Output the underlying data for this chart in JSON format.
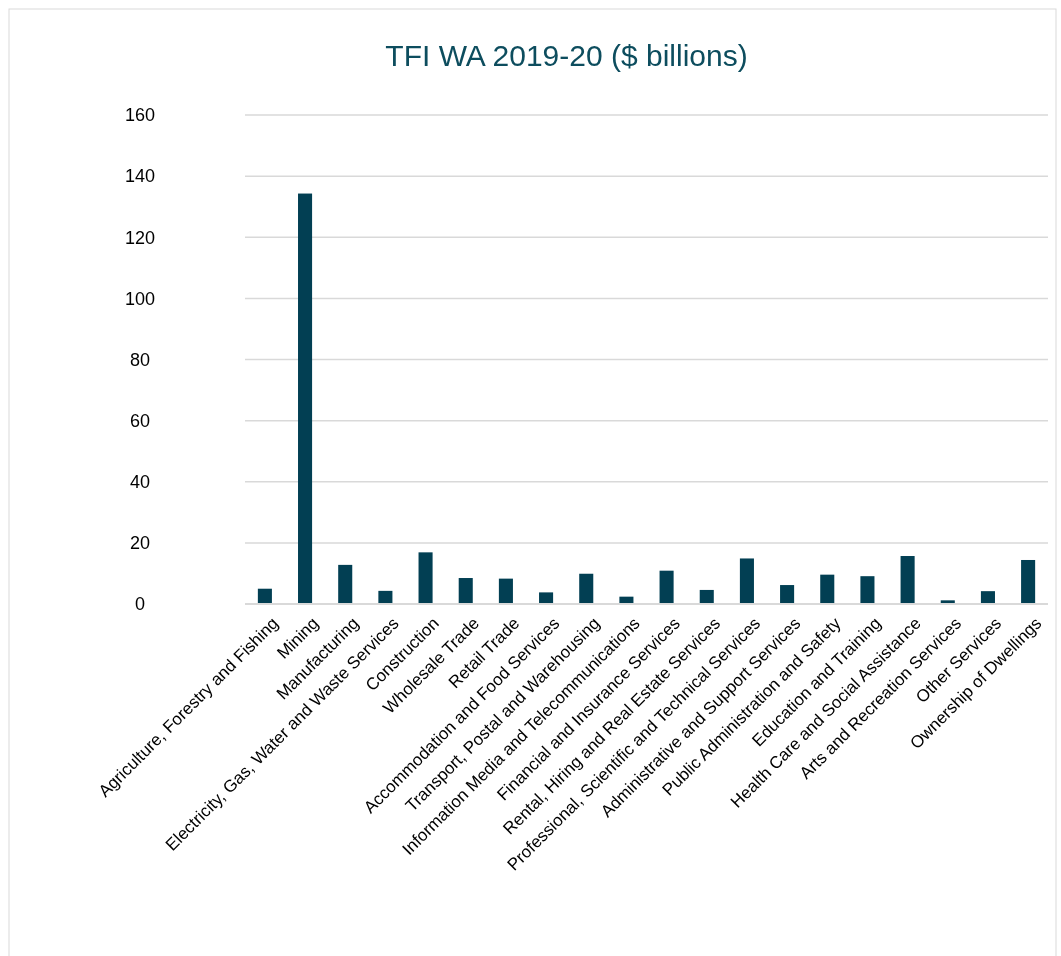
{
  "chart_data": {
    "type": "bar",
    "title": "TFI WA 2019-20 ($ billions)",
    "categories": [
      "Agriculture, Forestry and Fishing",
      "Mining",
      "Manufacturing",
      "Electricity, Gas, Water and Waste Services",
      "Construction",
      "Wholesale Trade",
      "Retail Trade",
      "Accommodation and Food Services",
      "Transport, Postal and Warehousing",
      "Information Media and Telecommunications",
      "Financial and Insurance Services",
      "Rental, Hiring and Real Estate Services",
      "Professional, Scientific and Technical Services",
      "Administrative and Support Services",
      "Public Administration and Safety",
      "Education and Training",
      "Health Care and Social Assistance",
      "Arts and Recreation Services",
      "Other Services",
      "Ownership of Dwellings"
    ],
    "values": [
      5.0,
      134.3,
      12.8,
      4.3,
      16.9,
      8.5,
      8.3,
      3.8,
      9.9,
      2.4,
      10.9,
      4.6,
      14.9,
      6.2,
      9.6,
      9.1,
      15.7,
      1.2,
      4.2,
      14.4
    ],
    "color": "#023f53",
    "ylim": [
      0,
      160
    ],
    "yticks": [
      0,
      20,
      40,
      60,
      80,
      100,
      120,
      140,
      160
    ],
    "grid": "y"
  }
}
